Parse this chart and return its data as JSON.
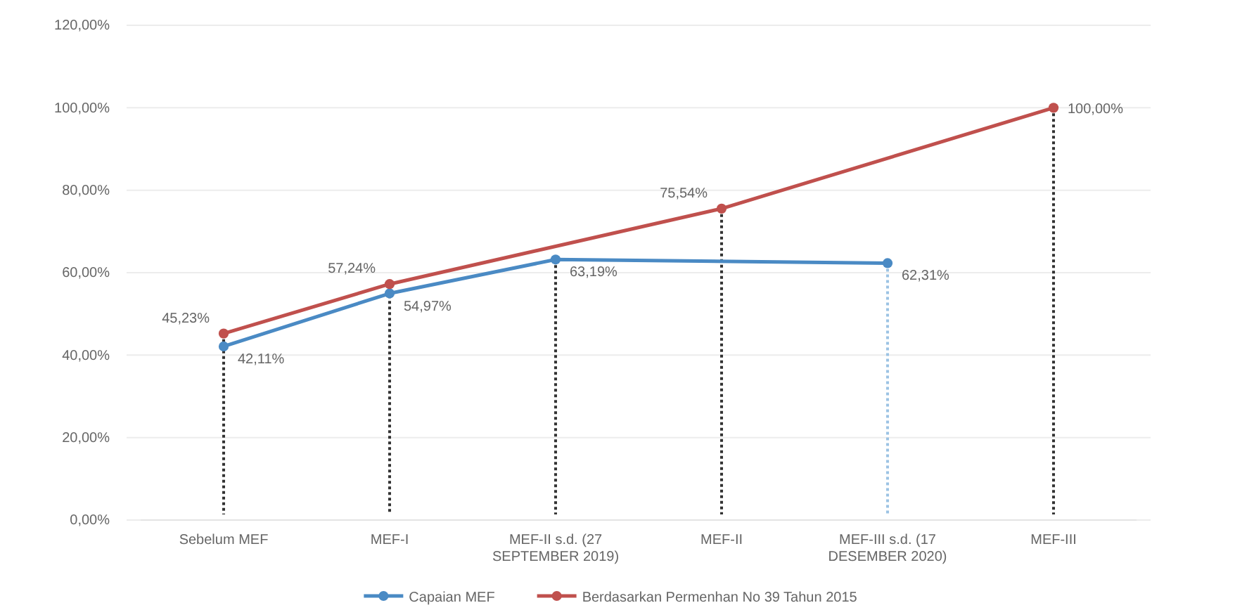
{
  "chart_data": {
    "type": "line",
    "categories": [
      "Sebelum MEF",
      "MEF-I",
      "MEF-II s.d. (27 SEPTEMBER 2019)",
      "MEF-II",
      "MEF-III s.d. (17 DESEMBER 2020)",
      "MEF-III"
    ],
    "series": [
      {
        "name": "Capaian MEF",
        "color": "#4a8ac4",
        "values": [
          42.11,
          54.97,
          63.19,
          null,
          62.31,
          null
        ],
        "value_labels": [
          "42,11%",
          "54,97%",
          "63,19%",
          null,
          "62,31%",
          null
        ]
      },
      {
        "name": "Berdasarkan Permenhan No 39 Tahun 2015",
        "color": "#c0504d",
        "values": [
          45.23,
          57.24,
          null,
          75.54,
          null,
          100
        ],
        "value_labels": [
          "45,23%",
          "57,24%",
          null,
          "75,54%",
          null,
          "100,00%"
        ]
      }
    ],
    "ylim": [
      0,
      120
    ],
    "yticks": [
      {
        "value": 0,
        "label": "0,00%"
      },
      {
        "value": 20,
        "label": "20,00%"
      },
      {
        "value": 40,
        "label": "40,00%"
      },
      {
        "value": 60,
        "label": "60,00%"
      },
      {
        "value": 80,
        "label": "80,00%"
      },
      {
        "value": 100,
        "label": "100,00%"
      },
      {
        "value": 120,
        "label": "120,00%"
      }
    ],
    "ref_lines": [
      {
        "axis": "x",
        "value": "Sebelum MEF",
        "color": "#333333",
        "line_style": "dotted"
      },
      {
        "axis": "x",
        "value": "MEF-I",
        "color": "#333333",
        "line_style": "dotted"
      },
      {
        "axis": "x",
        "value": "MEF-II s.d. (27 SEPTEMBER 2019)",
        "color": "#333333",
        "line_style": "dotted"
      },
      {
        "axis": "x",
        "value": "MEF-II",
        "color": "#333333",
        "line_style": "dotted"
      },
      {
        "axis": "x",
        "value": "MEF-III s.d. (17 DESEMBER 2020)",
        "color": "#9cc3e4",
        "line_style": "dotted"
      },
      {
        "axis": "x",
        "value": "MEF-III",
        "color": "#333333",
        "line_style": "dotted"
      }
    ],
    "grid": "y",
    "legend": "bottom",
    "marker": "circle",
    "line_style": "solid"
  }
}
